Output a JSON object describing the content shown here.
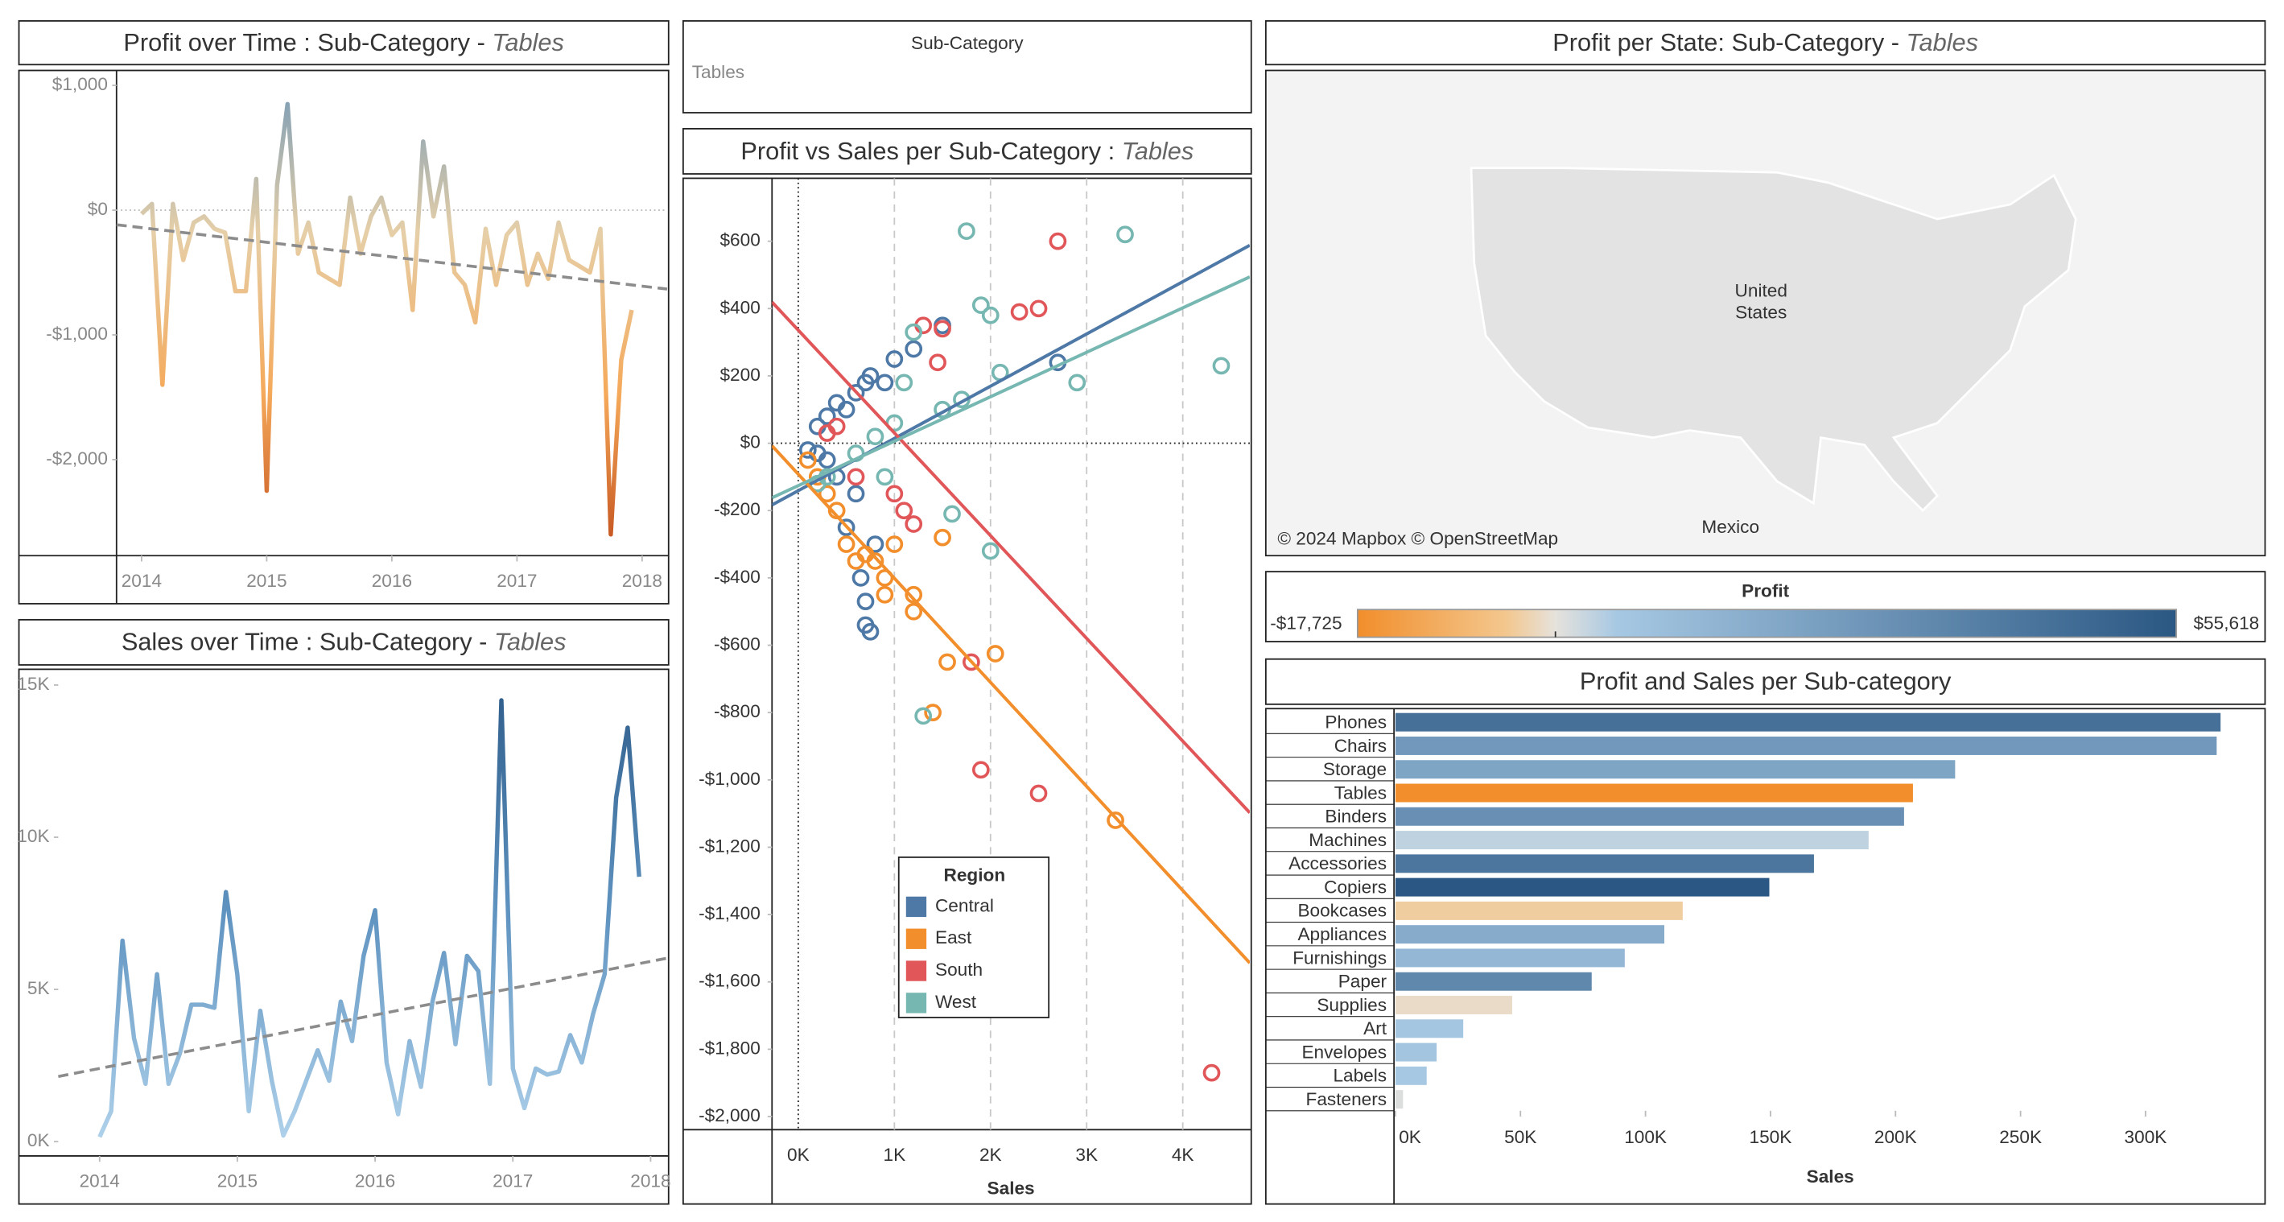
{
  "filter": {
    "label": "Sub-Category",
    "value": "Tables"
  },
  "chart_data": [
    {
      "type": "line",
      "title": "Profit over Time : Sub-Category - ",
      "title_emphasis": "Tables",
      "x": [
        "2014-01",
        "2014-02",
        "2014-03",
        "2014-04",
        "2014-05",
        "2014-06",
        "2014-07",
        "2014-08",
        "2014-09",
        "2014-10",
        "2014-11",
        "2014-12",
        "2015-01",
        "2015-02",
        "2015-03",
        "2015-04",
        "2015-05",
        "2015-06",
        "2015-07",
        "2015-08",
        "2015-09",
        "2015-10",
        "2015-11",
        "2015-12",
        "2016-01",
        "2016-02",
        "2016-03",
        "2016-04",
        "2016-05",
        "2016-06",
        "2016-07",
        "2016-08",
        "2016-09",
        "2016-10",
        "2016-11",
        "2016-12",
        "2017-01",
        "2017-02",
        "2017-03",
        "2017-04",
        "2017-05",
        "2017-06",
        "2017-07",
        "2017-08",
        "2017-09",
        "2017-10",
        "2017-11",
        "2017-12"
      ],
      "values": [
        -30,
        50,
        -1400,
        50,
        -400,
        -100,
        -50,
        -150,
        -180,
        -650,
        -650,
        250,
        -2250,
        200,
        850,
        -350,
        -100,
        -500,
        -550,
        -600,
        100,
        -350,
        -50,
        100,
        -200,
        -100,
        -800,
        550,
        -50,
        350,
        -500,
        -600,
        -900,
        -150,
        -600,
        -200,
        -100,
        -600,
        -350,
        -550,
        -100,
        -400,
        -450,
        -500,
        -150,
        -2600,
        -1200,
        -800
      ],
      "xlim": [
        2013.8,
        2018.2
      ],
      "xticks": [
        2014,
        2015,
        2016,
        2017,
        2018
      ],
      "ylim": [
        -2770,
        1120
      ],
      "yticks": [
        {
          "value": 1000,
          "label": "$1,000"
        },
        {
          "value": 0,
          "label": "$0"
        },
        {
          "value": -1000,
          "label": "-$1,000"
        },
        {
          "value": -2000,
          "label": "-$2,000"
        }
      ],
      "colors": [
        "#6f97b8",
        "#e6cfa8",
        "#f5a95a",
        "#c24f1c"
      ],
      "trend": true,
      "zero_line": true
    },
    {
      "type": "line",
      "title": "Sales over Time : Sub-Category - ",
      "title_emphasis": "Tables",
      "x": [
        "2014-01",
        "2014-02",
        "2014-03",
        "2014-04",
        "2014-05",
        "2014-06",
        "2014-07",
        "2014-08",
        "2014-09",
        "2014-10",
        "2014-11",
        "2014-12",
        "2015-01",
        "2015-02",
        "2015-03",
        "2015-04",
        "2015-05",
        "2015-06",
        "2015-07",
        "2015-08",
        "2015-09",
        "2015-10",
        "2015-11",
        "2015-12",
        "2016-01",
        "2016-02",
        "2016-03",
        "2016-04",
        "2016-05",
        "2016-06",
        "2016-07",
        "2016-08",
        "2016-09",
        "2016-10",
        "2016-11",
        "2016-12",
        "2017-01",
        "2017-02",
        "2017-03",
        "2017-04",
        "2017-05",
        "2017-06",
        "2017-07",
        "2017-08",
        "2017-09",
        "2017-10",
        "2017-11",
        "2017-12"
      ],
      "values": [
        150,
        1000,
        6600,
        3400,
        1900,
        5500,
        1900,
        2900,
        4500,
        4500,
        4400,
        8200,
        5500,
        1000,
        4300,
        2000,
        200,
        1000,
        2000,
        3000,
        2000,
        4600,
        3300,
        6100,
        7600,
        2600,
        900,
        3300,
        1800,
        4600,
        6200,
        3200,
        6100,
        5600,
        1900,
        14500,
        2400,
        1100,
        2400,
        2200,
        2300,
        3500,
        2600,
        4200,
        5500,
        11300,
        13600,
        8700
      ],
      "xlim": [
        2013.7,
        2018.12
      ],
      "xticks": [
        2014,
        2015,
        2016,
        2017,
        2018
      ],
      "ylim": [
        -470,
        15470
      ],
      "yticks": [
        {
          "value": 0,
          "label": "0K"
        },
        {
          "value": 5000,
          "label": "5K"
        },
        {
          "value": 10000,
          "label": "10K"
        },
        {
          "value": 15000,
          "label": "15K"
        }
      ],
      "colors": [
        "#2c5a88",
        "#5f93c0",
        "#b5d6ee"
      ],
      "trend": true,
      "zero_line": false
    },
    {
      "type": "scatter",
      "title": "Profit vs Sales per Sub-Category : ",
      "title_emphasis": "Tables",
      "x_label": "Sales",
      "legend_title": "Region",
      "xlim": [
        -273,
        4697
      ],
      "xticks": [
        {
          "value": 0,
          "label": "0K"
        },
        {
          "value": 1000,
          "label": "1K"
        },
        {
          "value": 2000,
          "label": "2K"
        },
        {
          "value": 3000,
          "label": "3K"
        },
        {
          "value": 4000,
          "label": "4K"
        }
      ],
      "ylim": [
        -2039,
        787
      ],
      "yticks": [
        {
          "value": 600,
          "label": "$600"
        },
        {
          "value": 400,
          "label": "$400"
        },
        {
          "value": 200,
          "label": "$200"
        },
        {
          "value": 0,
          "label": "$0"
        },
        {
          "value": -200,
          "label": "-$200"
        },
        {
          "value": -400,
          "label": "-$400"
        },
        {
          "value": -600,
          "label": "-$600"
        },
        {
          "value": -800,
          "label": "-$800"
        },
        {
          "value": -1000,
          "label": "-$1,000"
        },
        {
          "value": -1200,
          "label": "-$1,200"
        },
        {
          "value": -1400,
          "label": "-$1,400"
        },
        {
          "value": -1600,
          "label": "-$1,600"
        },
        {
          "value": -1800,
          "label": "-$1,800"
        },
        {
          "value": -2000,
          "label": "-$2,000"
        }
      ],
      "series": [
        {
          "name": "Central",
          "color": "#4e79a7",
          "x": [
            100,
            200,
            300,
            400,
            500,
            600,
            700,
            750,
            800,
            700,
            750,
            700,
            650,
            500,
            400,
            300,
            1000,
            1200,
            1500,
            2700,
            900,
            600,
            200
          ],
          "values": [
            -20,
            50,
            80,
            120,
            100,
            150,
            180,
            200,
            -300,
            -540,
            -560,
            -470,
            -400,
            -250,
            -100,
            -50,
            250,
            280,
            350,
            240,
            180,
            -150,
            -30
          ]
        },
        {
          "name": "East",
          "color": "#f28e2b",
          "x": [
            100,
            200,
            300,
            400,
            500,
            600,
            700,
            800,
            900,
            1000,
            1200,
            1500,
            1550,
            1400,
            2050,
            3300,
            1200,
            900
          ],
          "values": [
            -50,
            -100,
            -150,
            -200,
            -300,
            -350,
            -330,
            -350,
            -400,
            -300,
            -450,
            -280,
            -650,
            -800,
            -625,
            -1120,
            -500,
            -450
          ]
        },
        {
          "name": "South",
          "color": "#e15759",
          "x": [
            2700,
            2500,
            2300,
            1500,
            1450,
            1100,
            1000,
            1200,
            1800,
            1900,
            2500,
            4300,
            400,
            300,
            600,
            1300
          ],
          "values": [
            600,
            400,
            390,
            340,
            240,
            -200,
            -150,
            -240,
            -650,
            -970,
            -1040,
            -1870,
            50,
            30,
            -100,
            350
          ]
        },
        {
          "name": "West",
          "color": "#76b7b2",
          "x": [
            1750,
            3400,
            4400,
            2000,
            1900,
            2100,
            2900,
            1700,
            1500,
            1200,
            1100,
            1000,
            800,
            600,
            300,
            200,
            1600,
            2000,
            1300,
            900
          ],
          "values": [
            630,
            620,
            230,
            380,
            410,
            210,
            180,
            130,
            100,
            330,
            180,
            60,
            20,
            -30,
            -100,
            -120,
            -210,
            -320,
            -810,
            -100
          ]
        }
      ],
      "trend": true
    },
    {
      "type": "map",
      "title": "Profit per State: Sub-Category - ",
      "title_emphasis": "Tables",
      "attribution": "© 2024 Mapbox © OpenStreetMap",
      "labels": [
        "United",
        "States",
        "Mexico"
      ],
      "legend": {
        "title": "Profit",
        "range": [
          {
            "value": -17725,
            "label": "-$17,725"
          },
          {
            "value": 55618,
            "label": "$55,618"
          }
        ],
        "colors": [
          "#f28e2b",
          "#f3c78e",
          "#e6e2dc",
          "#a6c8e3",
          "#2a5783"
        ]
      }
    },
    {
      "type": "bar",
      "title": "Profit and Sales per Sub-category",
      "x_label": "Sales",
      "categories": [
        "Phones",
        "Chairs",
        "Storage",
        "Tables",
        "Binders",
        "Machines",
        "Accessories",
        "Copiers",
        "Bookcases",
        "Appliances",
        "Furnishings",
        "Paper",
        "Supplies",
        "Art",
        "Envelopes",
        "Labels",
        "Fasteners"
      ],
      "values": [
        330007,
        328449,
        223844,
        206966,
        203413,
        189239,
        167380,
        149528,
        114880,
        107532,
        91705,
        78479,
        46674,
        27119,
        16476,
        12486,
        3024
      ],
      "profit": [
        44516,
        26590,
        21279,
        -17725,
        30222,
        3385,
        41937,
        55618,
        -3473,
        18138,
        13059,
        34054,
        -1189,
        6528,
        6964,
        5546,
        950
      ],
      "xlim": [
        0,
        347800
      ],
      "xticks": [
        {
          "value": 0,
          "label": "0K"
        },
        {
          "value": 50000,
          "label": "50K"
        },
        {
          "value": 100000,
          "label": "100K"
        },
        {
          "value": 150000,
          "label": "150K"
        },
        {
          "value": 200000,
          "label": "200K"
        },
        {
          "value": 250000,
          "label": "250K"
        },
        {
          "value": 300000,
          "label": "300K"
        }
      ]
    }
  ]
}
